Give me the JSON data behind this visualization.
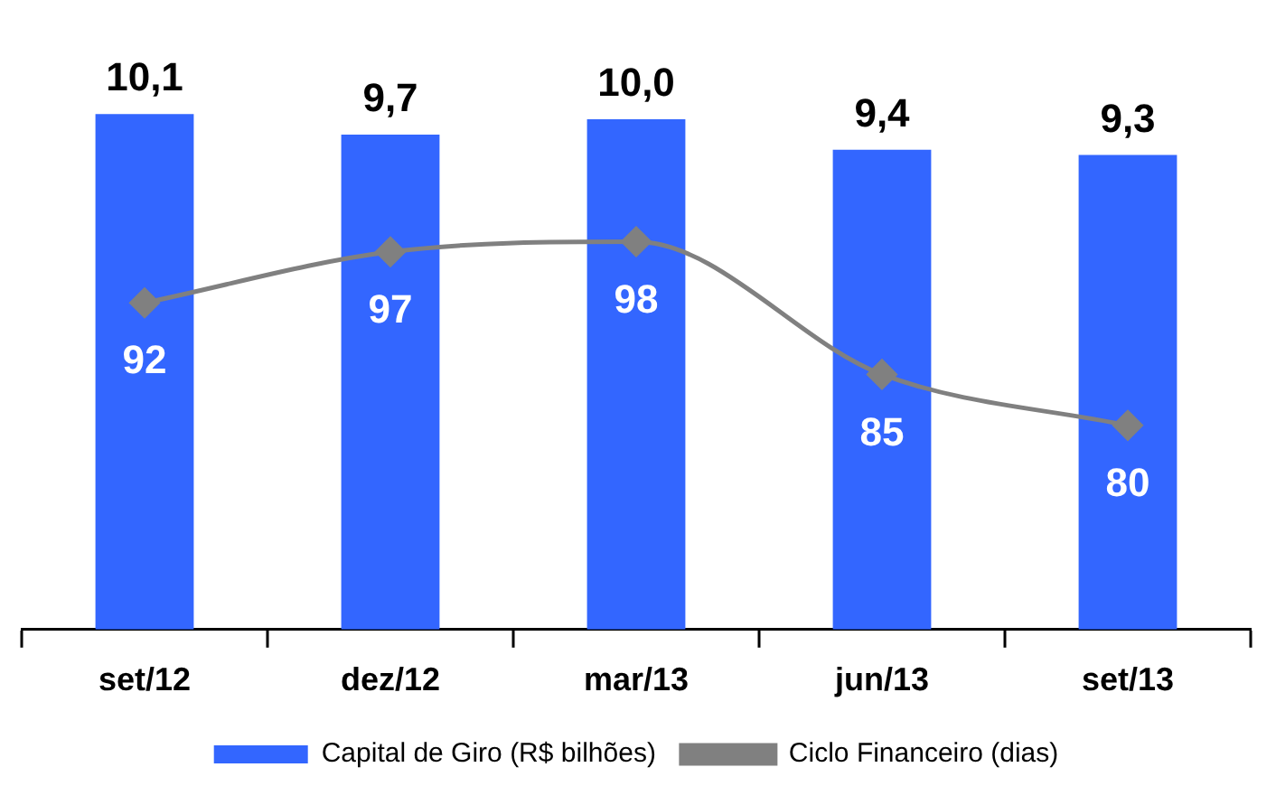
{
  "chart_data": {
    "type": "bar",
    "categories": [
      "set/12",
      "dez/12",
      "mar/13",
      "jun/13",
      "set/13"
    ],
    "series": [
      {
        "name": "Capital de Giro (R$ bilhões)",
        "color": "#3366ff",
        "values": [
          10.1,
          9.7,
          10.0,
          9.4,
          9.3
        ],
        "value_labels": [
          "10,1",
          "9,7",
          "10,0",
          "9,4",
          "9,3"
        ]
      },
      {
        "name": "Ciclo Financeiro (dias)",
        "type": "line",
        "axis": "y2",
        "color": "#808080",
        "marker": "diamond",
        "values": [
          92,
          97,
          98,
          85,
          80
        ],
        "value_labels": [
          "92",
          "97",
          "98",
          "85",
          "80"
        ]
      }
    ],
    "tick_labels": "x",
    "grid": false,
    "legend": "bottom"
  }
}
